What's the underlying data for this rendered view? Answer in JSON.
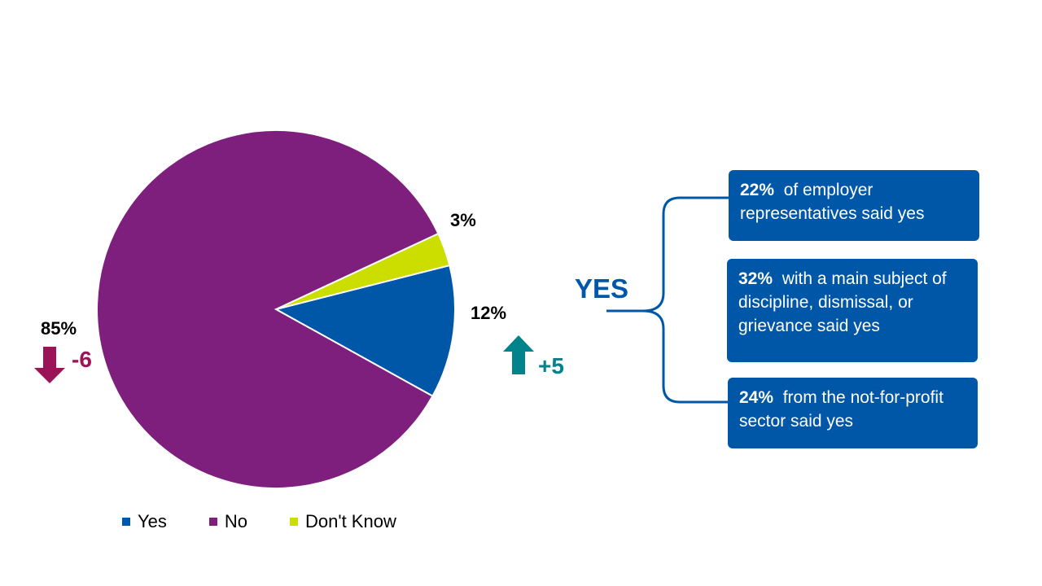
{
  "chart_data": {
    "type": "pie",
    "slices": [
      {
        "name": "Yes",
        "value": 12,
        "label": "12%",
        "color": "#0057A8"
      },
      {
        "name": "Don't Know",
        "value": 3,
        "label": "3%",
        "color": "#CCDD00"
      },
      {
        "name": "No",
        "value": 85,
        "label": "85%",
        "color": "#7F1F7D"
      }
    ],
    "legend": [
      "Yes",
      "No",
      "Don't Know"
    ],
    "legend_position": "bottom",
    "changes": {
      "yes": {
        "value": "+5",
        "direction": "up",
        "color": "#00838A"
      },
      "no": {
        "value": "-6",
        "direction": "down",
        "color": "#9B1458"
      }
    }
  },
  "yes_group": {
    "label": "YES",
    "callouts": [
      {
        "pct": "22%",
        "text": "of employer representatives said yes"
      },
      {
        "pct": "32%",
        "text": "with a main subject of discipline, dismissal, or grievance said yes"
      },
      {
        "pct": "24%",
        "text": "from the not-for-profit sector said yes"
      }
    ]
  }
}
